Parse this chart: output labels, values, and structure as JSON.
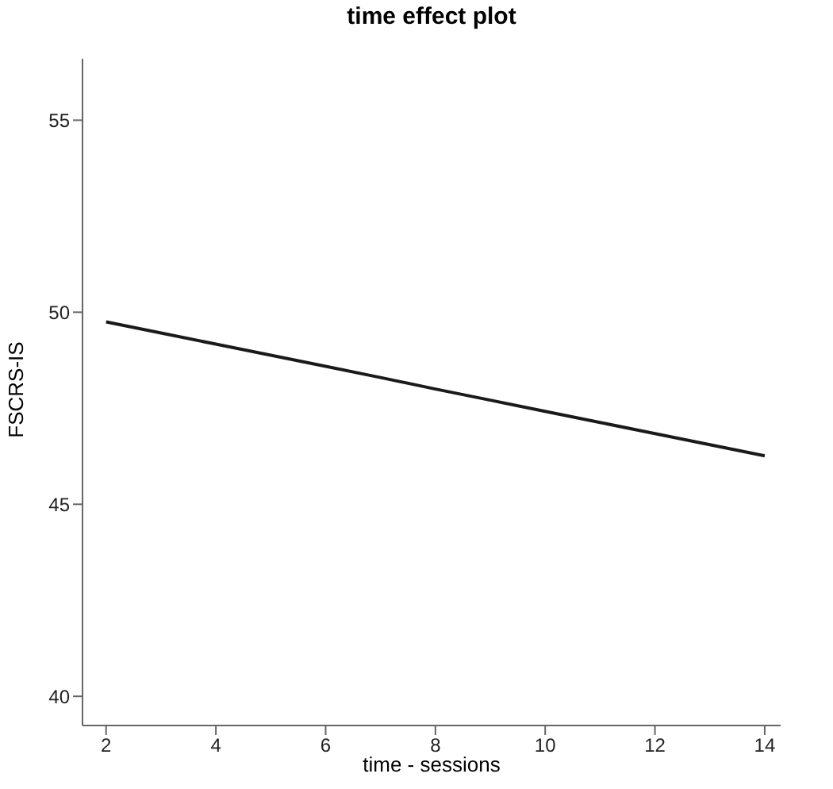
{
  "chart_data": {
    "type": "line",
    "title": "time effect plot",
    "xlabel": "time - sessions",
    "ylabel": "FSCRS-IS",
    "x": [
      2,
      3,
      4,
      5,
      6,
      7,
      8,
      9,
      10,
      11,
      12,
      13,
      14
    ],
    "series": [
      {
        "color": "#1a1a1a",
        "values": [
          49.75,
          49.46,
          49.17,
          48.88,
          48.59,
          48.3,
          48.0,
          47.71,
          47.42,
          47.13,
          46.84,
          46.55,
          46.26
        ]
      }
    ],
    "xlim": [
      1.57,
      14.29
    ],
    "xticks": [
      2,
      4,
      6,
      8,
      10,
      12,
      14
    ],
    "ylim": [
      39.24,
      56.6
    ],
    "yticks": [
      40,
      45,
      50,
      55
    ],
    "grid": false,
    "legend": false,
    "marker": "none",
    "line_style": "solid"
  }
}
